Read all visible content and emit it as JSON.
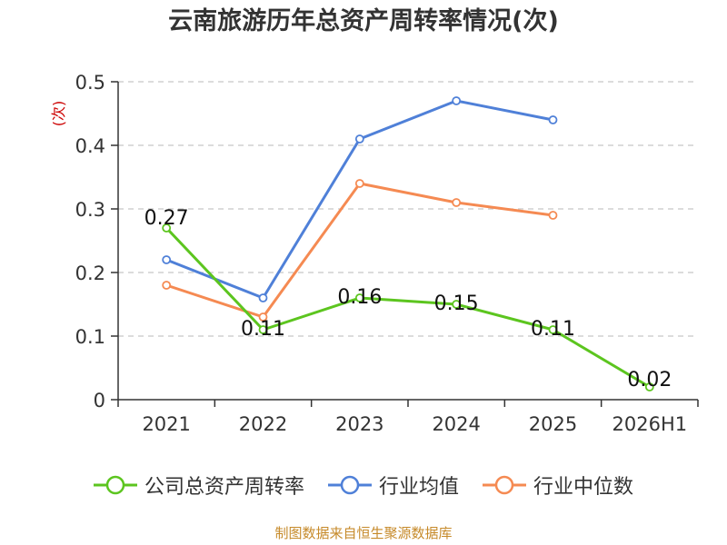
{
  "chart_data": {
    "type": "line",
    "title": "云南旅游历年总资产周转率情况(次)",
    "ylabel": "(次)",
    "categories": [
      "2021",
      "2022",
      "2023",
      "2024",
      "2025",
      "2026H1"
    ],
    "ylim": [
      0,
      0.5
    ],
    "yticks": [
      "0",
      "0.1",
      "0.2",
      "0.3",
      "0.4",
      "0.5"
    ],
    "grid": true,
    "legend_position": "bottom",
    "series": [
      {
        "name": "公司总资产周转率",
        "color": "#5cc51f",
        "values": [
          0.27,
          0.11,
          0.16,
          0.15,
          0.11,
          0.02
        ],
        "labels": [
          "0.27",
          "0.11",
          "0.16",
          "0.15",
          "0.11",
          "0.02"
        ]
      },
      {
        "name": "行业均值",
        "color": "#4f80d8",
        "values": [
          0.22,
          0.16,
          0.41,
          0.47,
          0.44,
          null
        ]
      },
      {
        "name": "行业中位数",
        "color": "#f58a52",
        "values": [
          0.18,
          0.13,
          0.34,
          0.31,
          0.29,
          null
        ]
      }
    ]
  },
  "colors": {
    "ylabel": "#cc0000",
    "axis": "#333333",
    "grid": "#c8c8c8"
  },
  "footer": "制图数据来自恒生聚源数据库"
}
